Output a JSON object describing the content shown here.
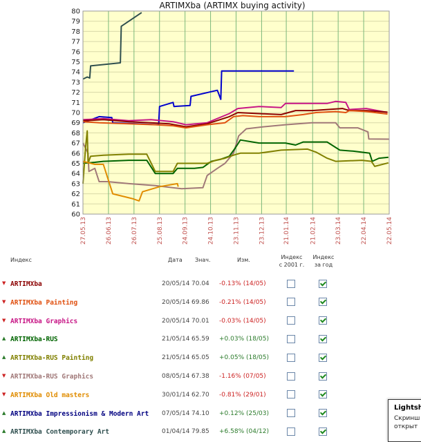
{
  "chart_data": {
    "type": "line",
    "title": "ARTIMXba (ARTIMX buying activity)",
    "ylim": [
      60,
      80
    ],
    "yticks": [
      60,
      61,
      62,
      63,
      64,
      65,
      66,
      67,
      68,
      69,
      70,
      71,
      72,
      73,
      74,
      75,
      76,
      77,
      78,
      79,
      80
    ],
    "xlim": [
      "2013-05-27",
      "2014-05-22"
    ],
    "xticks": [
      "27.05.13",
      "26.06.13",
      "26.07.13",
      "25.08.13",
      "24.09.13",
      "24.10.13",
      "23.11.13",
      "23.12.13",
      "21.01.14",
      "21.02.14",
      "23.03.14",
      "22.04.14",
      "22.05.14"
    ],
    "grid": true,
    "series": [
      {
        "name": "ARTIMXba Contemporary Art",
        "color": "#2f4f4f",
        "points": [
          [
            "2013-05-27",
            73.3
          ],
          [
            "2013-06-01",
            73.5
          ],
          [
            "2013-06-04",
            73.4
          ],
          [
            "2013-06-05",
            74.6
          ],
          [
            "2013-07-10",
            74.9
          ],
          [
            "2013-07-11",
            78.5
          ],
          [
            "2013-08-04",
            79.85
          ]
        ]
      },
      {
        "name": "ARTIMXba Impressionism & Modern Art",
        "color": "#0000cc",
        "points": [
          [
            "2013-05-27",
            69.0
          ],
          [
            "2013-06-15",
            69.6
          ],
          [
            "2013-06-30",
            69.5
          ],
          [
            "2013-07-01",
            69.0
          ],
          [
            "2013-08-24",
            68.8
          ],
          [
            "2013-08-25",
            70.6
          ],
          [
            "2013-09-10",
            71.0
          ],
          [
            "2013-09-11",
            70.6
          ],
          [
            "2013-09-30",
            70.7
          ],
          [
            "2013-10-01",
            71.6
          ],
          [
            "2013-11-01",
            72.2
          ],
          [
            "2013-11-05",
            71.3
          ],
          [
            "2013-11-06",
            74.1
          ],
          [
            "2014-01-30",
            74.1
          ]
        ]
      },
      {
        "name": "ARTIMXba Graphics",
        "color": "#c71585",
        "points": [
          [
            "2013-05-27",
            69.3
          ],
          [
            "2013-06-20",
            69.4
          ],
          [
            "2013-07-20",
            69.2
          ],
          [
            "2013-08-15",
            69.3
          ],
          [
            "2013-09-10",
            69.1
          ],
          [
            "2013-09-25",
            68.8
          ],
          [
            "2013-10-20",
            69.0
          ],
          [
            "2013-11-15",
            69.9
          ],
          [
            "2013-11-25",
            70.4
          ],
          [
            "2013-12-20",
            70.6
          ],
          [
            "2014-01-15",
            70.5
          ],
          [
            "2014-01-20",
            70.9
          ],
          [
            "2014-02-20",
            70.9
          ],
          [
            "2014-03-10",
            70.9
          ],
          [
            "2014-03-20",
            71.1
          ],
          [
            "2014-04-01",
            71.0
          ],
          [
            "2014-04-05",
            70.3
          ],
          [
            "2014-04-25",
            70.4
          ],
          [
            "2014-05-20",
            70.01
          ]
        ]
      },
      {
        "name": "ARTIMXba",
        "color": "#8b0000",
        "points": [
          [
            "2013-05-27",
            69.2
          ],
          [
            "2013-06-20",
            69.3
          ],
          [
            "2013-07-20",
            69.1
          ],
          [
            "2013-08-15",
            69.0
          ],
          [
            "2013-09-05",
            68.9
          ],
          [
            "2013-09-25",
            68.6
          ],
          [
            "2013-10-20",
            68.9
          ],
          [
            "2013-11-15",
            69.6
          ],
          [
            "2013-11-25",
            70.0
          ],
          [
            "2013-12-20",
            69.9
          ],
          [
            "2014-01-15",
            69.8
          ],
          [
            "2014-02-01",
            70.2
          ],
          [
            "2014-02-20",
            70.2
          ],
          [
            "2014-03-10",
            70.3
          ],
          [
            "2014-03-28",
            70.4
          ],
          [
            "2014-04-05",
            70.2
          ],
          [
            "2014-04-25",
            70.2
          ],
          [
            "2014-05-20",
            70.04
          ]
        ]
      },
      {
        "name": "ARTIMXba Painting",
        "color": "#e05010",
        "points": [
          [
            "2013-05-27",
            69.1
          ],
          [
            "2013-06-15",
            69.0
          ],
          [
            "2013-07-20",
            68.9
          ],
          [
            "2013-08-20",
            68.8
          ],
          [
            "2013-09-10",
            68.7
          ],
          [
            "2013-09-25",
            68.5
          ],
          [
            "2013-10-20",
            68.8
          ],
          [
            "2013-11-10",
            69.0
          ],
          [
            "2013-11-20",
            69.6
          ],
          [
            "2013-12-01",
            69.7
          ],
          [
            "2013-12-20",
            69.6
          ],
          [
            "2014-01-20",
            69.6
          ],
          [
            "2014-02-10",
            69.8
          ],
          [
            "2014-02-25",
            70.0
          ],
          [
            "2014-03-20",
            70.1
          ],
          [
            "2014-04-01",
            70.0
          ],
          [
            "2014-04-05",
            70.2
          ],
          [
            "2014-04-25",
            70.1
          ],
          [
            "2014-05-20",
            69.86
          ]
        ]
      },
      {
        "name": "ARTIMXba-RUS Graphics",
        "color": "#a07878",
        "points": [
          [
            "2013-05-27",
            67.0
          ],
          [
            "2013-06-02",
            66.0
          ],
          [
            "2013-06-03",
            64.2
          ],
          [
            "2013-06-10",
            64.5
          ],
          [
            "2013-06-15",
            63.2
          ],
          [
            "2013-06-25",
            63.2
          ],
          [
            "2013-07-20",
            63.0
          ],
          [
            "2013-08-20",
            62.8
          ],
          [
            "2013-09-20",
            62.5
          ],
          [
            "2013-10-15",
            62.6
          ],
          [
            "2013-10-20",
            63.8
          ],
          [
            "2013-11-01",
            64.5
          ],
          [
            "2013-11-10",
            65.0
          ],
          [
            "2013-11-20",
            66.0
          ],
          [
            "2013-11-26",
            67.7
          ],
          [
            "2013-12-05",
            68.4
          ],
          [
            "2013-12-25",
            68.6
          ],
          [
            "2014-01-20",
            68.8
          ],
          [
            "2014-02-20",
            69.0
          ],
          [
            "2014-03-20",
            69.0
          ],
          [
            "2014-03-25",
            68.5
          ],
          [
            "2014-04-15",
            68.5
          ],
          [
            "2014-04-27",
            68.1
          ],
          [
            "2014-04-28",
            67.4
          ],
          [
            "2014-05-22",
            67.38
          ]
        ]
      },
      {
        "name": "ARTIMXba-RUS",
        "color": "#006400",
        "points": [
          [
            "2013-05-27",
            65.0
          ],
          [
            "2013-06-10",
            65.1
          ],
          [
            "2013-06-20",
            65.2
          ],
          [
            "2013-07-20",
            65.3
          ],
          [
            "2013-08-10",
            65.3
          ],
          [
            "2013-08-20",
            64.0
          ],
          [
            "2013-09-10",
            64.0
          ],
          [
            "2013-09-15",
            64.5
          ],
          [
            "2013-10-05",
            64.5
          ],
          [
            "2013-10-15",
            64.6
          ],
          [
            "2013-10-25",
            65.2
          ],
          [
            "2013-11-05",
            65.4
          ],
          [
            "2013-11-15",
            65.7
          ],
          [
            "2013-11-22",
            66.5
          ],
          [
            "2013-11-28",
            67.3
          ],
          [
            "2013-12-20",
            67.0
          ],
          [
            "2014-01-20",
            67.0
          ],
          [
            "2014-02-01",
            66.8
          ],
          [
            "2014-02-10",
            67.1
          ],
          [
            "2014-03-10",
            67.1
          ],
          [
            "2014-03-25",
            66.3
          ],
          [
            "2014-04-10",
            66.2
          ],
          [
            "2014-04-29",
            66.0
          ],
          [
            "2014-05-02",
            65.2
          ],
          [
            "2014-05-10",
            65.5
          ],
          [
            "2014-05-21",
            65.59
          ]
        ]
      },
      {
        "name": "ARTIMXba-RUS Painting",
        "color": "#808000",
        "points": [
          [
            "2013-05-27",
            63.0
          ],
          [
            "2013-05-30",
            66.5
          ],
          [
            "2013-06-01",
            68.2
          ],
          [
            "2013-06-02",
            65.0
          ],
          [
            "2013-06-05",
            65.7
          ],
          [
            "2013-06-20",
            65.8
          ],
          [
            "2013-07-20",
            65.9
          ],
          [
            "2013-08-10",
            65.9
          ],
          [
            "2013-08-20",
            64.2
          ],
          [
            "2013-09-10",
            64.2
          ],
          [
            "2013-09-15",
            65.0
          ],
          [
            "2013-10-20",
            65.0
          ],
          [
            "2013-10-30",
            65.3
          ],
          [
            "2013-11-10",
            65.5
          ],
          [
            "2013-11-20",
            65.8
          ],
          [
            "2013-11-28",
            66.0
          ],
          [
            "2013-12-20",
            66.0
          ],
          [
            "2014-01-15",
            66.3
          ],
          [
            "2014-02-15",
            66.4
          ],
          [
            "2014-02-25",
            66.1
          ],
          [
            "2014-03-10",
            65.5
          ],
          [
            "2014-03-20",
            65.2
          ],
          [
            "2014-04-20",
            65.3
          ],
          [
            "2014-05-01",
            65.2
          ],
          [
            "2014-05-05",
            64.7
          ],
          [
            "2014-05-21",
            65.05
          ]
        ]
      },
      {
        "name": "ARTIMXba Old masters",
        "color": "#e08c00",
        "points": [
          [
            "2013-05-27",
            65.2
          ],
          [
            "2013-06-10",
            64.9
          ],
          [
            "2013-06-20",
            64.9
          ],
          [
            "2013-07-01",
            62.0
          ],
          [
            "2013-07-25",
            61.5
          ],
          [
            "2013-08-01",
            61.3
          ],
          [
            "2013-08-05",
            62.2
          ],
          [
            "2013-08-25",
            62.7
          ],
          [
            "2013-09-15",
            63.0
          ],
          [
            "2013-09-16",
            62.7
          ]
        ]
      }
    ]
  },
  "table": {
    "headers": {
      "index": "Индекс",
      "date": "Дата",
      "value": "Знач.",
      "change": "Изм.",
      "since2001_l1": "Индекс",
      "since2001_l2": "с 2001 г.",
      "year_l1": "Индекс",
      "year_l2": "за год"
    },
    "rows": [
      {
        "arrow": "▼",
        "dir": "down",
        "name": "ARTIMXba",
        "color": "#8b0000",
        "date": "20/05/14",
        "value": "70.04",
        "change": "-0.13% (14/05)",
        "chg_sign": "neg",
        "since2001": false,
        "year": true
      },
      {
        "arrow": "▼",
        "dir": "down",
        "name": "ARTIMXba Painting",
        "color": "#e05010",
        "date": "20/05/14",
        "value": "69.86",
        "change": "-0.21% (14/05)",
        "chg_sign": "neg",
        "since2001": false,
        "year": true
      },
      {
        "arrow": "▼",
        "dir": "down",
        "name": "ARTIMXba Graphics",
        "color": "#c71585",
        "date": "20/05/14",
        "value": "70.01",
        "change": "-0.03% (14/05)",
        "chg_sign": "neg",
        "since2001": false,
        "year": true
      },
      {
        "arrow": "▲",
        "dir": "up",
        "name": "ARTIMXba-RUS",
        "color": "#006400",
        "date": "21/05/14",
        "value": "65.59",
        "change": "+0.03% (18/05)",
        "chg_sign": "pos",
        "since2001": false,
        "year": true
      },
      {
        "arrow": "▲",
        "dir": "up",
        "name": "ARTIMXba-RUS Painting",
        "color": "#808000",
        "date": "21/05/14",
        "value": "65.05",
        "change": "+0.05% (18/05)",
        "chg_sign": "pos",
        "since2001": false,
        "year": true
      },
      {
        "arrow": "▼",
        "dir": "down",
        "name": "ARTIMXba-RUS Graphics",
        "color": "#a07878",
        "date": "08/05/14",
        "value": "67.38",
        "change": "-1.16% (07/05)",
        "chg_sign": "neg",
        "since2001": false,
        "year": true
      },
      {
        "arrow": "▼",
        "dir": "down",
        "name": "ARTIMXba Old masters",
        "color": "#e08c00",
        "date": "30/01/14",
        "value": "62.70",
        "change": "-0.81% (29/01)",
        "chg_sign": "neg",
        "since2001": false,
        "year": true
      },
      {
        "arrow": "▲",
        "dir": "up",
        "name": "ARTIMXba Impressionism & Modern Art",
        "color": "#000080",
        "date": "07/05/14",
        "value": "74.10",
        "change": "+0.12% (25/03)",
        "chg_sign": "pos",
        "since2001": false,
        "year": true
      },
      {
        "arrow": "▲",
        "dir": "up",
        "name": "ARTIMXba Contemporary Art",
        "color": "#2f4f4f",
        "date": "01/04/14",
        "value": "79.85",
        "change": "+6.58% (04/12)",
        "chg_sign": "pos",
        "since2001": false,
        "year": true
      }
    ]
  },
  "tooltip": {
    "title": "Lightsh",
    "line1": "Скринш",
    "line2": "открыт"
  }
}
